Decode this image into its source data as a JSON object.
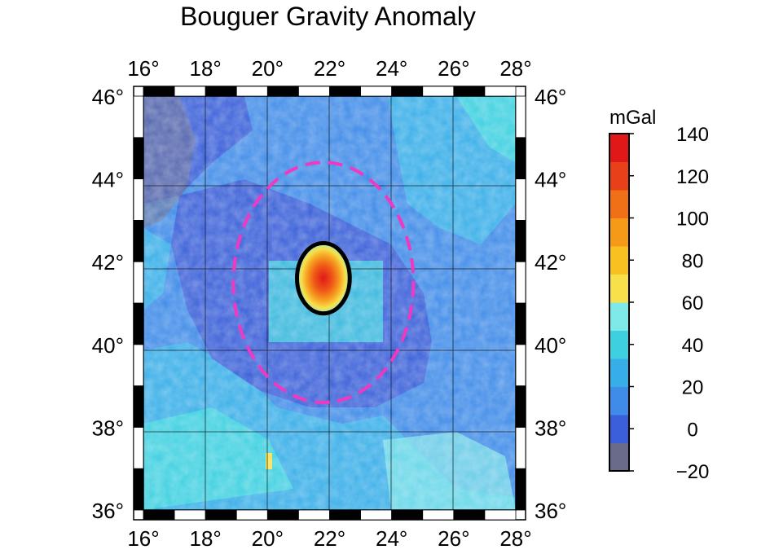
{
  "title": "Bouguer Gravity Anomaly",
  "axes": {
    "longitude_ticks": [
      "16°",
      "18°",
      "20°",
      "22°",
      "24°",
      "26°",
      "28°"
    ],
    "latitude_ticks": [
      "46°",
      "44°",
      "42°",
      "40°",
      "38°",
      "36°"
    ],
    "lon_range": [
      16,
      28
    ],
    "lat_range": [
      36,
      46
    ]
  },
  "colorbar": {
    "unit": "mGal",
    "ticks": [
      "140",
      "120",
      "100",
      "80",
      "60",
      "40",
      "20",
      "0",
      "−20"
    ],
    "range": [
      -20,
      140
    ],
    "colors": [
      "#6a6a8a",
      "#3a5fd8",
      "#3f8be8",
      "#38aee8",
      "#3ed0e0",
      "#7fe8e8",
      "#f8e04a",
      "#f8c020",
      "#f59a18",
      "#f07018",
      "#e84018",
      "#e01818"
    ]
  },
  "markers": {
    "anomaly_circle": {
      "center_lon": 21.8,
      "center_lat": 41.6,
      "radius_deg": 0.85,
      "color": "#000000"
    },
    "dashed_ring": {
      "center_lon": 21.8,
      "center_lat": 41.5,
      "radius_deg": 2.9,
      "color": "#f038c0"
    }
  }
}
